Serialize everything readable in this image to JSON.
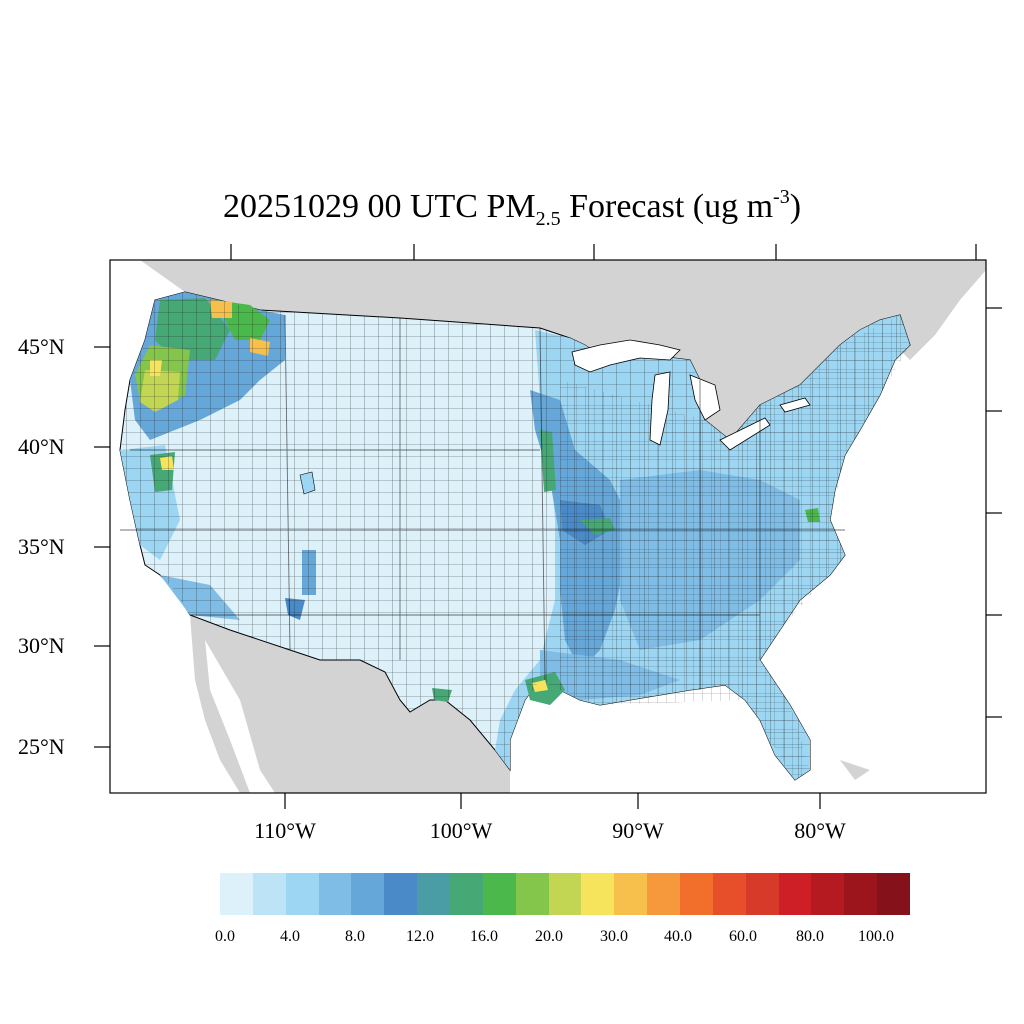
{
  "title": {
    "prefix": "20251029 00 UTC PM",
    "subscript": "2.5",
    "middle": " Forecast (ug m",
    "superscript": "-3",
    "suffix": ")"
  },
  "axes": {
    "lat_labels": [
      "45°N",
      "40°N",
      "35°N",
      "30°N",
      "25°N"
    ],
    "lon_labels": [
      "110°W",
      "100°W",
      "90°W",
      "80°W"
    ]
  },
  "colorbar": {
    "labels": [
      "0.0",
      "4.0",
      "8.0",
      "12.0",
      "16.0",
      "20.0",
      "30.0",
      "40.0",
      "60.0",
      "80.0",
      "100.0"
    ],
    "colors": [
      "#ddf1fb",
      "#bde3f7",
      "#9cd6f3",
      "#7fbde6",
      "#66a7d9",
      "#4a8ac8",
      "#4a9da4",
      "#45a875",
      "#4ab84a",
      "#84c54c",
      "#c3d654",
      "#f6e45c",
      "#f7bf4c",
      "#f6993c",
      "#f26f2b",
      "#e64f29",
      "#d83a29",
      "#ce1f27",
      "#b51a21",
      "#9c151c",
      "#85121a"
    ]
  },
  "map_colors": {
    "ocean": "#ffffff",
    "land_outside": "#d3d3d3",
    "conus_base": "#ddf1fb",
    "border": "#000000"
  }
}
